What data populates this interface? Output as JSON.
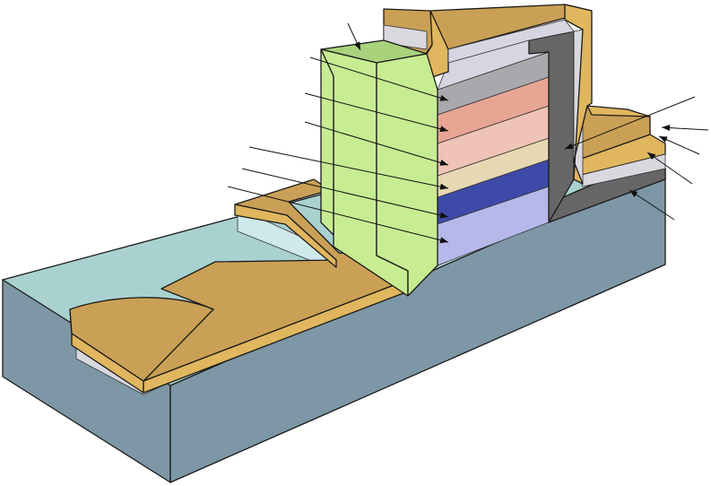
{
  "diagram": {
    "description_labels": [],
    "colors": {
      "substrate_side": "#7d97a6",
      "substrate_top": "#a9d1cf",
      "substrate_top_light": "#b6dcd9",
      "gold_top": "#caa056",
      "gold_face": "#e0b65e",
      "dielectric_light": "#d8d8de",
      "passivation_dark": "#666666",
      "pillar_green": "#c8ec92",
      "pillar_green_top": "#a9d27c",
      "layer_gray": "#a9a9ad",
      "layer_salmon": "#e8a593",
      "layer_pink": "#efc3b6",
      "layer_cream": "#e7d8b3",
      "layer_blue": "#3e4aa8",
      "layer_lavender": "#b6b8ea",
      "cavity_light": "#d6d6e2"
    },
    "leader_count": 13
  }
}
